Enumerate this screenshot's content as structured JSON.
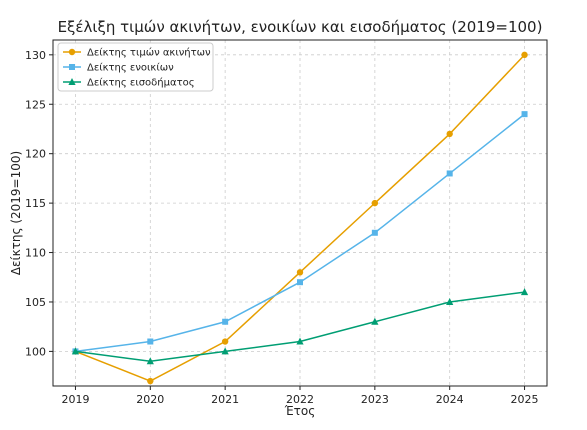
{
  "chart_data": {
    "type": "line",
    "title": "Εξέλιξη τιμών ακινήτων, ενοικίων και εισοδήματος (2019=100)",
    "xlabel": "Έτος",
    "ylabel": "Δείκτης (2019=100)",
    "x": [
      2019,
      2020,
      2021,
      2022,
      2023,
      2024,
      2025
    ],
    "xlim": [
      2018.7,
      2025.3
    ],
    "ylim": [
      96.5,
      131.5
    ],
    "yticks": [
      100,
      105,
      110,
      115,
      120,
      125,
      130
    ],
    "grid": true,
    "legend_position": "top-left",
    "series": [
      {
        "name": "Δείκτης τιμών ακινήτων",
        "values": [
          100,
          97,
          101,
          108,
          115,
          122,
          130
        ],
        "color": "#E69F00",
        "marker": "circle"
      },
      {
        "name": "Δείκτης ενοικίων",
        "values": [
          100,
          101,
          103,
          107,
          112,
          118,
          124
        ],
        "color": "#56B4E9",
        "marker": "square"
      },
      {
        "name": "Δείκτης εισοδήματος",
        "values": [
          100,
          99,
          100,
          101,
          103,
          105,
          106
        ],
        "color": "#009E73",
        "marker": "triangle"
      }
    ]
  }
}
